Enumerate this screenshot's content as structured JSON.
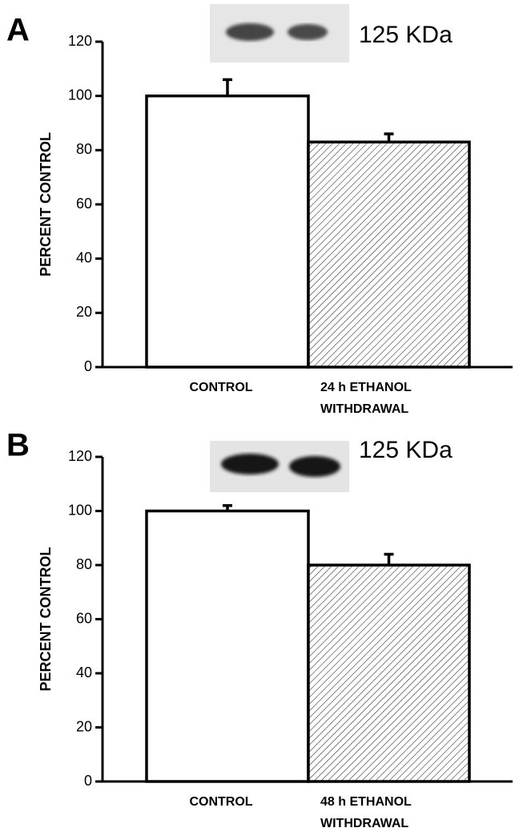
{
  "chart_data": [
    {
      "type": "bar",
      "panel": "A",
      "annotation": "125 KDa",
      "ylabel": "PERCENT CONTROL",
      "categories": [
        [
          "CONTROL"
        ],
        [
          "24 h  ETHANOL",
          "WITHDRAWAL"
        ]
      ],
      "values": [
        100,
        83
      ],
      "errors": [
        6,
        3
      ],
      "colors": [
        "#ffffff",
        "#ffffff"
      ],
      "hatched": [
        false,
        true
      ],
      "ylim": [
        0,
        120
      ],
      "yticks": [
        0,
        20,
        40,
        60,
        80,
        100,
        120
      ]
    },
    {
      "type": "bar",
      "panel": "B",
      "annotation": "125 KDa",
      "ylabel": "PERCENT CONTROL",
      "categories": [
        [
          "CONTROL"
        ],
        [
          "48 h  ETHANOL",
          "WITHDRAWAL"
        ]
      ],
      "values": [
        100,
        80
      ],
      "errors": [
        2,
        4
      ],
      "colors": [
        "#ffffff",
        "#ffffff"
      ],
      "hatched": [
        false,
        true
      ],
      "ylim": [
        0,
        120
      ],
      "yticks": [
        0,
        20,
        40,
        60,
        80,
        100,
        120
      ]
    }
  ]
}
